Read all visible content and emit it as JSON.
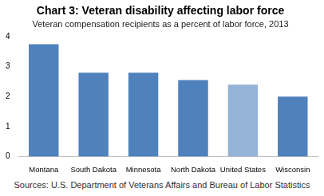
{
  "chart_data": {
    "type": "bar",
    "title": "Chart 3: Veteran disability affecting labor force",
    "subtitle": "Veteran compensation recipients as a percent of labor force, 2013",
    "annotations": [
      "Sources: U.S. Department of Veterans Affairs and Bureau of Labor Statistics"
    ],
    "categories": [
      "Montana",
      "South Dakota",
      "Minnesota",
      "North Dakota",
      "United States",
      "Wisconsin"
    ],
    "values": [
      3.75,
      2.8,
      2.8,
      2.55,
      2.4,
      2.0
    ],
    "colors": [
      "#4f81bd",
      "#4f81bd",
      "#4f81bd",
      "#4f81bd",
      "#95b3d7",
      "#4f81bd"
    ],
    "ylim": [
      0,
      4
    ],
    "yticks": [
      0,
      1,
      2,
      3,
      4
    ],
    "grid": false
  }
}
